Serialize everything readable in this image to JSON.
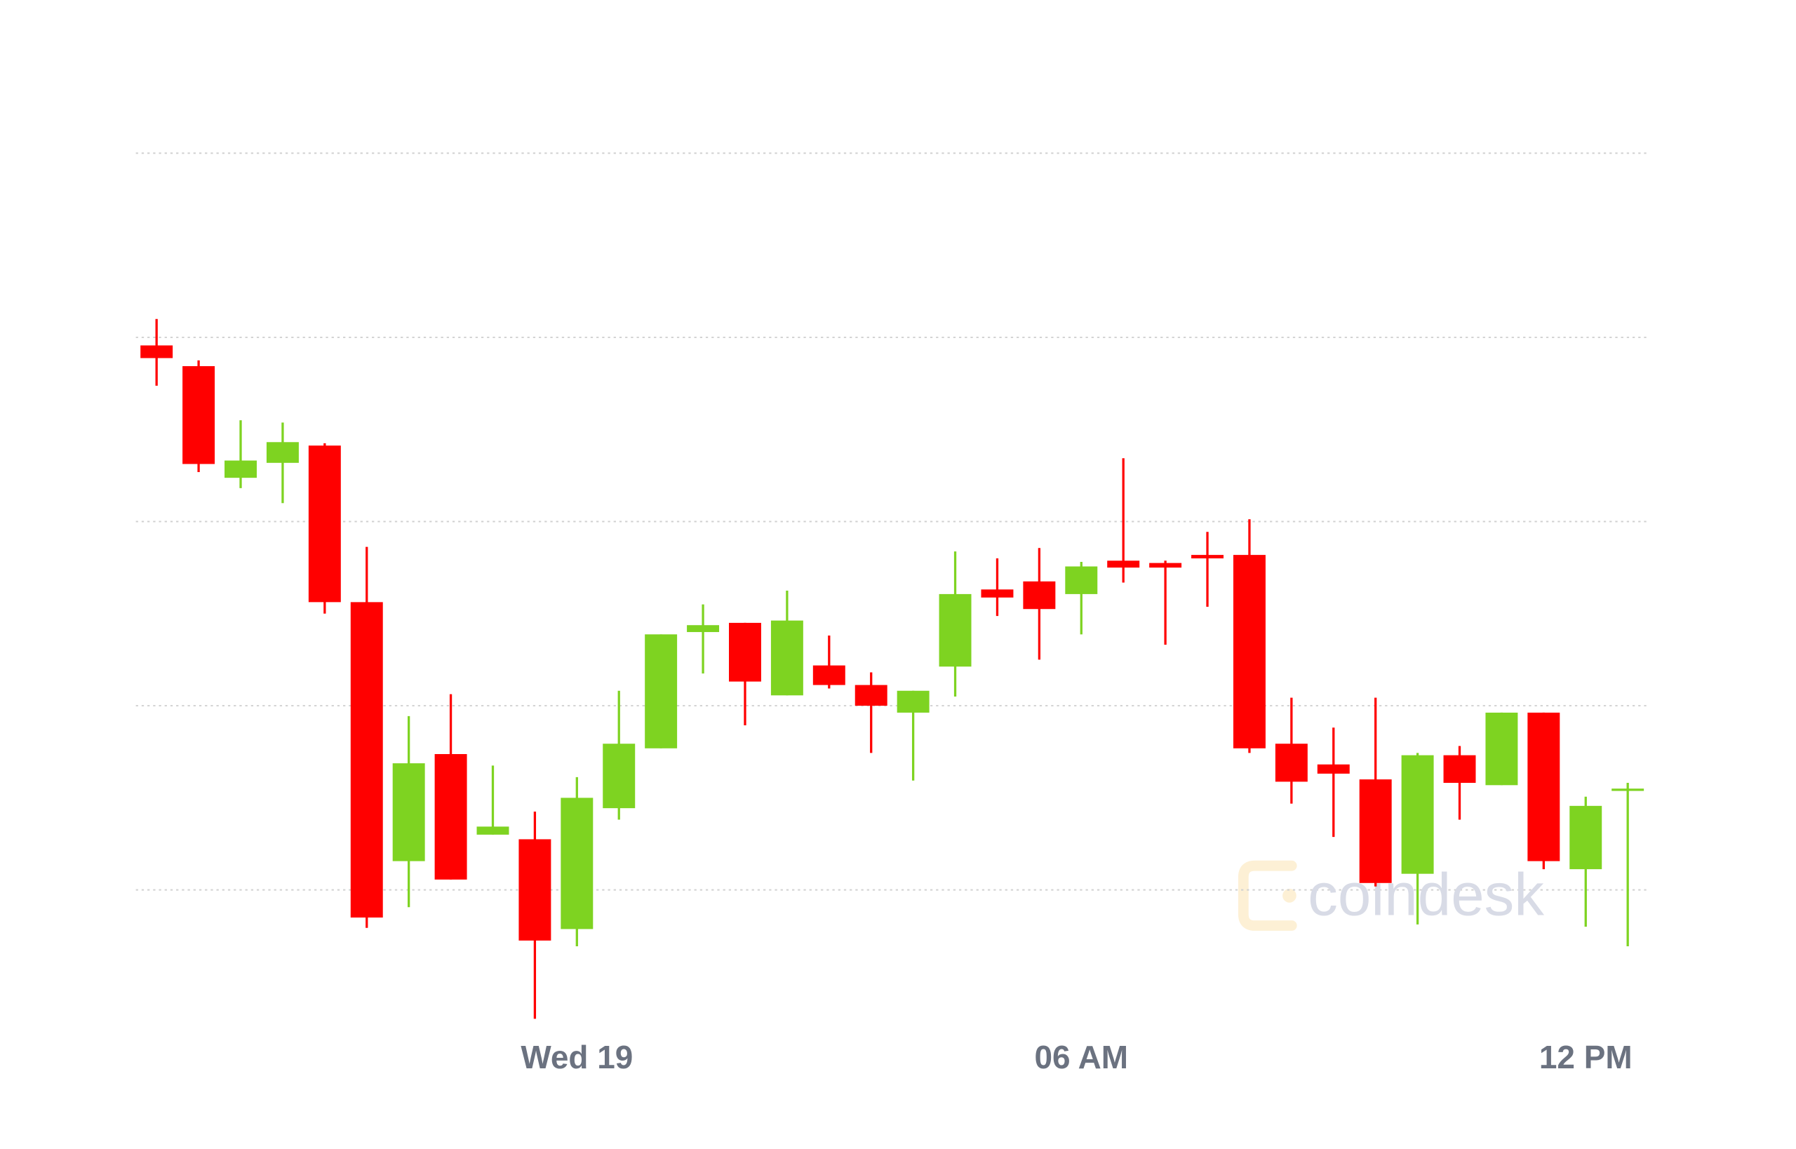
{
  "chart_data": {
    "type": "candlestick",
    "categories": [
      null,
      null,
      null,
      null,
      null,
      null,
      null,
      null,
      null,
      null,
      "Wed 19",
      null,
      null,
      null,
      null,
      null,
      null,
      null,
      null,
      null,
      null,
      null,
      "06 AM",
      null,
      null,
      null,
      null,
      null,
      null,
      null,
      null,
      null,
      null,
      null,
      "12 PM",
      null
    ],
    "open": [
      633,
      615,
      518,
      531,
      546,
      410,
      185,
      278,
      208,
      204,
      126,
      231,
      283,
      384,
      392,
      329,
      355,
      338,
      314,
      354,
      421,
      428,
      417,
      446,
      444,
      451,
      451,
      287,
      269,
      256,
      174,
      277,
      251,
      314,
      178,
      246
    ],
    "high": [
      656,
      620,
      568,
      566,
      548,
      458,
      311,
      330,
      268,
      228,
      258,
      333,
      382,
      408,
      392,
      420,
      381,
      349,
      333,
      454,
      448,
      457,
      445,
      535,
      446,
      471,
      482,
      327,
      301,
      327,
      279,
      285,
      314,
      314,
      241,
      253
    ],
    "low": [
      598,
      523,
      509,
      496,
      400,
      127,
      145,
      169,
      208,
      48,
      111,
      221,
      283,
      348,
      303,
      329,
      335,
      279,
      255,
      328,
      398,
      360,
      382,
      427,
      373,
      406,
      279,
      235,
      206,
      163,
      130,
      221,
      251,
      178,
      128,
      111
    ],
    "close": [
      622,
      530,
      533,
      549,
      410,
      136,
      270,
      169,
      215,
      116,
      240,
      287,
      382,
      390,
      341,
      394,
      338,
      320,
      333,
      417,
      414,
      404,
      441,
      440,
      440,
      448,
      283,
      254,
      261,
      166,
      277,
      253,
      314,
      185,
      233,
      248
    ],
    "up_color": "#7ed321",
    "down_color": "#ff0000",
    "ylim": [
      0,
      933
    ],
    "gridlines": [
      800,
      640,
      480,
      320,
      160
    ],
    "grid": true,
    "watermark": "coindesk"
  }
}
